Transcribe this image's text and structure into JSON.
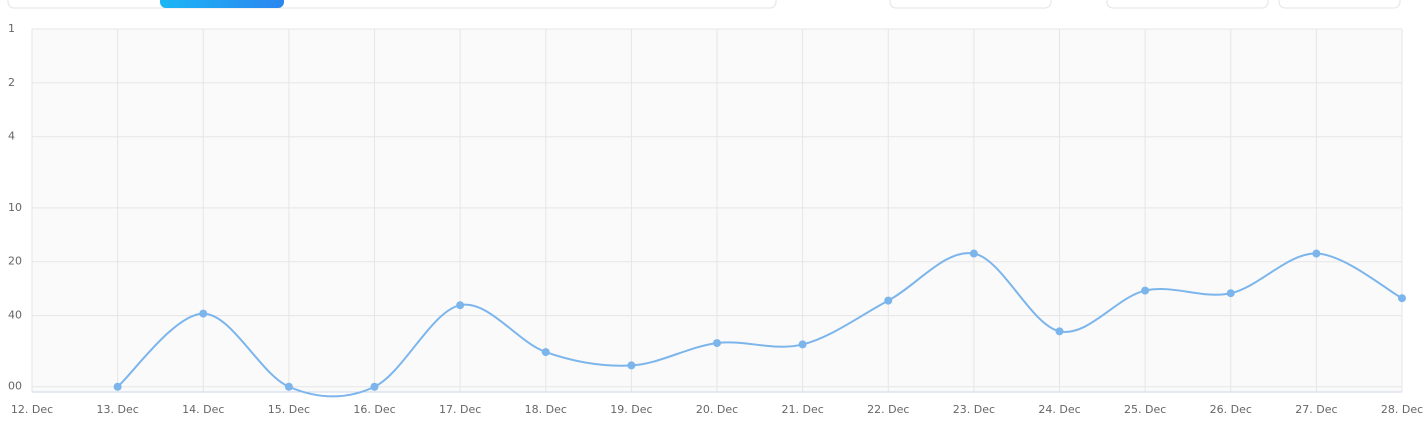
{
  "chart_data": {
    "type": "line",
    "categories": [
      "12. Dec",
      "13. Dec",
      "14. Dec",
      "15. Dec",
      "16. Dec",
      "17. Dec",
      "18. Dec",
      "19. Dec",
      "20. Dec",
      "21. Dec",
      "22. Dec",
      "23. Dec",
      "24. Dec",
      "25. Dec",
      "26. Dec",
      "27. Dec",
      "28. Dec"
    ],
    "series": [
      {
        "color": "#7cb5ec",
        "values": [
          null,
          100,
          39,
          100,
          100,
          35,
          64,
          76,
          57,
          58,
          33,
          18,
          49,
          29,
          30,
          18,
          32
        ]
      }
    ],
    "ylim": [
      1,
      107
    ],
    "log": true,
    "y_reversed": true,
    "yticks": [
      1,
      2,
      4,
      10,
      20,
      40,
      {
        "value": 100,
        "label": "00"
      }
    ],
    "grid": true
  }
}
